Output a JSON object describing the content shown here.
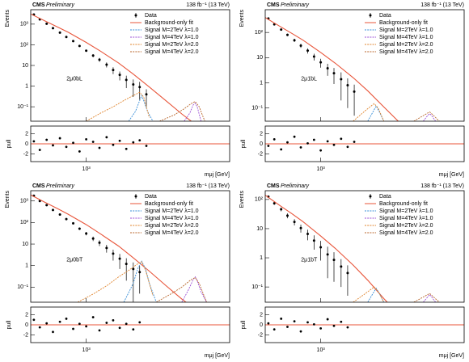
{
  "chart_data": [
    {
      "type": "line",
      "experiment": "CMS",
      "status": "Preliminary",
      "lumi": "138 fb⁻¹ (13 TeV)",
      "category": "2μ0bL",
      "x_label": "mμj [GeV]",
      "y_label": "Events",
      "pull_label": "pull",
      "xlog": true,
      "ylog": true,
      "legend": "upper right",
      "xlim": [
        500,
        6000
      ],
      "xticks": [
        {
          "value": 1000,
          "label": "10³"
        }
      ],
      "ylim": [
        0.02,
        5000
      ],
      "yticks": [
        {
          "value": 0.1,
          "label": "10⁻¹"
        },
        1,
        10,
        {
          "value": 100,
          "label": "10²"
        },
        {
          "value": 1000,
          "label": "10³"
        }
      ],
      "pull_ylim": [
        -3.5,
        3.5
      ],
      "pull_yticks": [
        -2,
        0,
        2
      ],
      "series": [
        {
          "name": "Data",
          "color": "#000000",
          "x": [
            520,
            560,
            610,
            660,
            720,
            780,
            850,
            920,
            1000,
            1090,
            1180,
            1290,
            1400,
            1520,
            1650,
            1800,
            1950,
            2120
          ],
          "values": [
            2900,
            1700,
            1050,
            640,
            390,
            240,
            150,
            88,
            52,
            30,
            19,
            11,
            6,
            3.5,
            2,
            1.2,
            0.9,
            0.4
          ],
          "errors": [
            60,
            40,
            30,
            24,
            18,
            14,
            11,
            8,
            6,
            5,
            4,
            3,
            2.2,
            1.6,
            1.2,
            0.9,
            0.7,
            0.3
          ],
          "pulls": [
            0.5,
            -1.2,
            0.8,
            -0.3,
            1.1,
            -0.6,
            0.2,
            -1.5,
            0.9,
            0.4,
            -0.8,
            1.3,
            -0.2,
            0.6,
            -1.0,
            0.3,
            0.7,
            -0.4
          ]
        },
        {
          "name": "Background-only fit",
          "color": "#e8553a",
          "x": [
            500,
            600,
            700,
            800,
            1000,
            1200,
            1500,
            1800,
            2200,
            2700,
            3300,
            4000
          ],
          "values": [
            3100,
            1400,
            720,
            400,
            130,
            48,
            13,
            3.8,
            0.9,
            0.2,
            0.045,
            0.012
          ]
        },
        {
          "name": "Signal M=2TeV λ=1.0",
          "color": "#3a8fd8",
          "x": [
            1700,
            1850,
            1950,
            2000,
            2050,
            2150,
            2300
          ],
          "values": [
            0.02,
            0.06,
            0.2,
            0.35,
            0.2,
            0.06,
            0.02
          ]
        },
        {
          "name": "Signal M=4TeV λ=1.0",
          "color": "#9b4fd6",
          "x": [
            3400,
            3650,
            3800,
            3900,
            4000,
            4200
          ],
          "values": [
            0.02,
            0.05,
            0.12,
            0.15,
            0.1,
            0.02
          ]
        },
        {
          "name": "Signal M=2TeV λ=2.0",
          "color": "#e0852e",
          "x": [
            1000,
            1200,
            1400,
            1600,
            1800,
            1950,
            2050,
            2200
          ],
          "values": [
            0.02,
            0.05,
            0.1,
            0.2,
            0.35,
            0.5,
            0.3,
            0.03
          ]
        },
        {
          "name": "Signal M=4TeV λ=2.0",
          "color": "#b8652a",
          "x": [
            2500,
            3000,
            3400,
            3700,
            3900,
            4100,
            4400
          ],
          "values": [
            0.02,
            0.04,
            0.08,
            0.14,
            0.18,
            0.1,
            0.02
          ]
        }
      ]
    },
    {
      "type": "line",
      "experiment": "CMS",
      "status": "Preliminary",
      "lumi": "138 fb⁻¹ (13 TeV)",
      "category": "2μ1bL",
      "x_label": "mμj [GeV]",
      "y_label": "Events",
      "pull_label": "pull",
      "xlog": true,
      "ylog": true,
      "legend": "upper right",
      "xlim": [
        500,
        6000
      ],
      "xticks": [
        {
          "value": 1000,
          "label": "10³"
        }
      ],
      "ylim": [
        0.03,
        800
      ],
      "yticks": [
        {
          "value": 0.1,
          "label": "10⁻¹"
        },
        1,
        10,
        {
          "value": 100,
          "label": "10²"
        }
      ],
      "pull_ylim": [
        -3.5,
        3.5
      ],
      "pull_yticks": [
        -2,
        0,
        2
      ],
      "series": [
        {
          "name": "Data",
          "color": "#000000",
          "x": [
            520,
            560,
            610,
            660,
            720,
            780,
            850,
            920,
            1000,
            1090,
            1180,
            1290,
            1400,
            1520
          ],
          "values": [
            360,
            210,
            130,
            80,
            49,
            30,
            19,
            11,
            6.5,
            3.8,
            2.4,
            1.4,
            0.8,
            0.45
          ],
          "errors": [
            20,
            14,
            11,
            9,
            7,
            5.5,
            4.4,
            3.3,
            2.5,
            1.9,
            1.5,
            1.2,
            0.7,
            0.4
          ],
          "pulls": [
            -0.4,
            0.9,
            -1.1,
            0.3,
            1.4,
            -0.7,
            0.1,
            0.8,
            -1.3,
            0.5,
            -0.2,
            1.0,
            -0.6,
            0.4
          ]
        },
        {
          "name": "Background-only fit",
          "color": "#e8553a",
          "x": [
            500,
            600,
            700,
            800,
            1000,
            1200,
            1500,
            1800,
            2200,
            2700
          ],
          "values": [
            390,
            175,
            90,
            50,
            16,
            6,
            1.6,
            0.48,
            0.11,
            0.025
          ]
        },
        {
          "name": "Signal M=2TeV λ=1.0",
          "color": "#3a8fd8",
          "x": [
            1800,
            1920,
            2000,
            2080,
            2200
          ],
          "values": [
            0.03,
            0.07,
            0.12,
            0.07,
            0.03
          ]
        },
        {
          "name": "Signal M=4TeV λ=1.0",
          "color": "#9b4fd6",
          "x": [
            3600,
            3800,
            3900,
            4000,
            4200
          ],
          "values": [
            0.03,
            0.05,
            0.06,
            0.05,
            0.03
          ]
        },
        {
          "name": "Signal M=2TeV λ=2.0",
          "color": "#e0852e",
          "x": [
            1500,
            1750,
            1950,
            2050,
            2200
          ],
          "values": [
            0.03,
            0.08,
            0.15,
            0.1,
            0.03
          ]
        },
        {
          "name": "Signal M=4TeV λ=2.0",
          "color": "#b8652a",
          "x": [
            3200,
            3600,
            3900,
            4100,
            4400
          ],
          "values": [
            0.03,
            0.05,
            0.07,
            0.05,
            0.03
          ]
        }
      ]
    },
    {
      "type": "line",
      "experiment": "CMS",
      "status": "Preliminary",
      "lumi": "138 fb⁻¹ (13 TeV)",
      "category": "2μ0bT",
      "x_label": "mμj [GeV]",
      "y_label": "Events",
      "pull_label": "pull",
      "xlog": true,
      "ylog": true,
      "legend": "upper right",
      "xlim": [
        500,
        6000
      ],
      "xticks": [
        {
          "value": 1000,
          "label": "10³"
        }
      ],
      "ylim": [
        0.02,
        3000
      ],
      "yticks": [
        {
          "value": 0.1,
          "label": "10⁻¹"
        },
        1,
        10,
        {
          "value": 100,
          "label": "10²"
        },
        {
          "value": 1000,
          "label": "10³"
        }
      ],
      "pull_ylim": [
        -3.5,
        3.5
      ],
      "pull_yticks": [
        -2,
        0,
        2
      ],
      "series": [
        {
          "name": "Data",
          "color": "#000000",
          "x": [
            520,
            560,
            610,
            660,
            720,
            780,
            850,
            920,
            1000,
            1090,
            1180,
            1290,
            1400,
            1520,
            1650,
            1800,
            1950
          ],
          "values": [
            1750,
            1000,
            640,
            380,
            235,
            145,
            92,
            52,
            31,
            18,
            11.5,
            6.6,
            3.6,
            2.1,
            1.2,
            0.7,
            0.5
          ],
          "errors": [
            45,
            32,
            25,
            19,
            15,
            12,
            9.5,
            7,
            5.5,
            4.2,
            3.4,
            2.6,
            1.9,
            1.4,
            1,
            0.7,
            0.45
          ],
          "pulls": [
            1.0,
            -0.5,
            0.3,
            -1.4,
            0.6,
            1.2,
            -0.8,
            0.2,
            -0.3,
            1.5,
            -1.1,
            0.4,
            0.9,
            -0.6,
            0.2,
            -0.9,
            0.5
          ]
        },
        {
          "name": "Background-only fit",
          "color": "#e8553a",
          "x": [
            500,
            600,
            700,
            800,
            1000,
            1200,
            1500,
            1800,
            2200,
            2700,
            3300,
            4000
          ],
          "values": [
            1900,
            850,
            440,
            240,
            80,
            29,
            8,
            2.3,
            0.55,
            0.12,
            0.028,
            0.008
          ]
        },
        {
          "name": "Signal M=2TeV λ=1.0",
          "color": "#3a8fd8",
          "x": [
            1600,
            1800,
            1900,
            2000,
            2100,
            2200,
            2400
          ],
          "values": [
            0.02,
            0.15,
            0.7,
            1.6,
            0.7,
            0.15,
            0.02
          ]
        },
        {
          "name": "Signal M=4TeV λ=1.0",
          "color": "#9b4fd6",
          "x": [
            3300,
            3600,
            3800,
            3900,
            4000,
            4200,
            4500
          ],
          "values": [
            0.02,
            0.08,
            0.22,
            0.3,
            0.2,
            0.06,
            0.02
          ]
        },
        {
          "name": "Signal M=2TeV λ=2.0",
          "color": "#e0852e",
          "x": [
            900,
            1100,
            1300,
            1500,
            1700,
            1900,
            2000,
            2100,
            2300
          ],
          "values": [
            0.02,
            0.05,
            0.12,
            0.3,
            0.6,
            1.2,
            1.5,
            0.6,
            0.04
          ]
        },
        {
          "name": "Signal M=4TeV λ=2.0",
          "color": "#b8652a",
          "x": [
            2400,
            2900,
            3300,
            3700,
            3900,
            4100,
            4500
          ],
          "values": [
            0.02,
            0.05,
            0.1,
            0.22,
            0.28,
            0.15,
            0.02
          ]
        }
      ]
    },
    {
      "type": "line",
      "experiment": "CMS",
      "status": "Preliminary",
      "lumi": "138 fb⁻¹ (13 TeV)",
      "category": "2μ1bT",
      "x_label": "mμj [GeV]",
      "y_label": "Events",
      "pull_label": "pull",
      "xlog": true,
      "ylog": true,
      "legend": "upper right",
      "xlim": [
        500,
        6000
      ],
      "xticks": [
        {
          "value": 1000,
          "label": "10³"
        }
      ],
      "ylim": [
        0.03,
        200
      ],
      "yticks": [
        {
          "value": 0.1,
          "label": "10⁻¹"
        },
        1,
        10,
        {
          "value": 100,
          "label": "10²"
        }
      ],
      "pull_ylim": [
        -3.5,
        3.5
      ],
      "pull_yticks": [
        -2,
        0,
        2
      ],
      "series": [
        {
          "name": "Data",
          "color": "#000000",
          "x": [
            520,
            560,
            610,
            660,
            720,
            780,
            850,
            920,
            1000,
            1090,
            1180,
            1290,
            1400
          ],
          "values": [
            125,
            74,
            46,
            28,
            17,
            10.5,
            6.6,
            3.9,
            2.3,
            1.3,
            0.85,
            0.5,
            0.3
          ],
          "errors": [
            11,
            8.6,
            6.8,
            5.3,
            4.1,
            3.2,
            2.6,
            2,
            1.5,
            1.1,
            0.7,
            0.4,
            0.25
          ],
          "pulls": [
            0.3,
            -0.9,
            1.2,
            -0.4,
            0.7,
            -1.3,
            0.5,
            0.1,
            -0.7,
            1.1,
            -0.2,
            0.6,
            -0.5
          ]
        },
        {
          "name": "Background-only fit",
          "color": "#e8553a",
          "x": [
            500,
            600,
            700,
            800,
            1000,
            1200,
            1500,
            1800,
            2200,
            2700
          ],
          "values": [
            140,
            62,
            32,
            17.5,
            5.6,
            2.1,
            0.56,
            0.17,
            0.04,
            0.01
          ]
        },
        {
          "name": "Signal M=2TeV λ=1.0",
          "color": "#3a8fd8",
          "x": [
            1800,
            1920,
            2000,
            2080,
            2200
          ],
          "values": [
            0.03,
            0.06,
            0.09,
            0.06,
            0.03
          ]
        },
        {
          "name": "Signal M=4TeV λ=1.0",
          "color": "#9b4fd6",
          "x": [
            3600,
            3800,
            3900,
            4000,
            4200
          ],
          "values": [
            0.03,
            0.045,
            0.055,
            0.045,
            0.03
          ]
        },
        {
          "name": "Signal M=2TeV λ=2.0",
          "color": "#e0852e",
          "x": [
            1500,
            1750,
            1950,
            2050,
            2200
          ],
          "values": [
            0.03,
            0.06,
            0.1,
            0.07,
            0.03
          ]
        },
        {
          "name": "Signal M=4TeV λ=2.0",
          "color": "#b8652a",
          "x": [
            3200,
            3600,
            3900,
            4100,
            4400
          ],
          "values": [
            0.03,
            0.045,
            0.06,
            0.045,
            0.03
          ]
        }
      ]
    }
  ]
}
